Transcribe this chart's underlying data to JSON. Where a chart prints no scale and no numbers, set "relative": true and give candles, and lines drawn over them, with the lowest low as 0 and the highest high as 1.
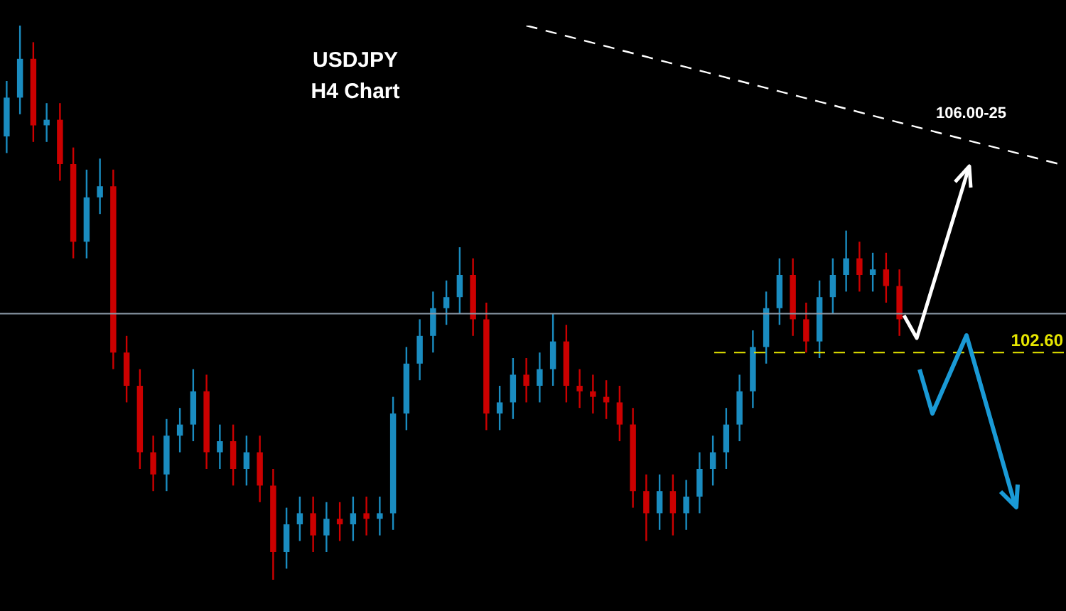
{
  "chart_data": {
    "type": "candlestick",
    "title": "USDJPY",
    "subtitle": "H4 Chart",
    "relative": true,
    "categories": [
      null,
      null,
      null,
      null,
      null,
      null,
      null,
      null,
      null,
      null,
      null,
      null,
      null,
      null,
      null,
      null,
      null,
      null,
      null,
      null,
      null,
      null,
      null,
      null,
      null,
      null,
      null,
      null,
      null,
      null,
      null,
      null,
      null,
      null,
      null,
      null,
      null,
      null,
      null,
      null,
      null,
      null,
      null,
      null,
      null,
      null,
      null,
      null,
      null,
      null,
      null,
      null,
      null,
      null,
      null,
      null,
      null,
      null,
      null,
      null,
      null,
      null,
      null,
      null,
      null,
      null,
      null,
      null,
      null,
      null,
      null,
      null,
      null,
      null,
      null,
      null,
      null,
      null,
      null,
      null
    ],
    "colors": [
      "#1a8cc0",
      "#1a8cc0",
      "#cc0000",
      "#1a8cc0",
      "#cc0000",
      "#cc0000",
      "#1a8cc0",
      "#1a8cc0",
      "#cc0000",
      "#cc0000",
      "#cc0000",
      "#cc0000",
      "#1a8cc0",
      "#1a8cc0",
      "#1a8cc0",
      "#cc0000",
      "#1a8cc0",
      "#cc0000",
      "#1a8cc0",
      "#cc0000",
      "#cc0000",
      "#1a8cc0",
      "#1a8cc0",
      "#cc0000",
      "#1a8cc0",
      "#cc0000",
      "#1a8cc0",
      "#cc0000",
      "#1a8cc0",
      "#1a8cc0",
      "#1a8cc0",
      "#1a8cc0",
      "#1a8cc0",
      "#1a8cc0",
      "#1a8cc0",
      "#cc0000",
      "#cc0000",
      "#1a8cc0",
      "#1a8cc0",
      "#cc0000",
      "#1a8cc0",
      "#1a8cc0",
      "#cc0000",
      "#cc0000",
      "#cc0000",
      "#cc0000",
      "#cc0000",
      "#cc0000",
      "#cc0000",
      "#1a8cc0",
      "#cc0000",
      "#1a8cc0",
      "#1a8cc0",
      "#1a8cc0",
      "#1a8cc0",
      "#1a8cc0",
      "#1a8cc0",
      "#1a8cc0",
      "#1a8cc0",
      "#cc0000",
      "#cc0000",
      "#1a8cc0",
      "#1a8cc0",
      "#1a8cc0",
      "#cc0000",
      "#1a8cc0",
      "#cc0000",
      "#cc0000",
      null,
      null,
      null,
      null,
      null,
      null,
      null,
      null,
      null,
      null,
      null,
      null
    ],
    "ohlc": [
      [
        0.8,
        0.9,
        0.77,
        0.87
      ],
      [
        0.87,
        1,
        0.84,
        0.94
      ],
      [
        0.94,
        0.97,
        0.79,
        0.82
      ],
      [
        0.82,
        0.86,
        0.79,
        0.83
      ],
      [
        0.83,
        0.86,
        0.72,
        0.75
      ],
      [
        0.75,
        0.78,
        0.58,
        0.61
      ],
      [
        0.61,
        0.74,
        0.58,
        0.69
      ],
      [
        0.69,
        0.76,
        0.66,
        0.71
      ],
      [
        0.71,
        0.74,
        0.38,
        0.41
      ],
      [
        0.41,
        0.44,
        0.32,
        0.35
      ],
      [
        0.35,
        0.38,
        0.2,
        0.23
      ],
      [
        0.23,
        0.26,
        0.16,
        0.19
      ],
      [
        0.19,
        0.29,
        0.16,
        0.26
      ],
      [
        0.26,
        0.31,
        0.23,
        0.28
      ],
      [
        0.28,
        0.38,
        0.25,
        0.34
      ],
      [
        0.34,
        0.37,
        0.2,
        0.23
      ],
      [
        0.23,
        0.28,
        0.2,
        0.25
      ],
      [
        0.25,
        0.28,
        0.17,
        0.2
      ],
      [
        0.2,
        0.26,
        0.17,
        0.23
      ],
      [
        0.23,
        0.26,
        0.14,
        0.17
      ],
      [
        0.17,
        0.2,
        0,
        0.05
      ],
      [
        0.05,
        0.13,
        0.02,
        0.1
      ],
      [
        0.1,
        0.15,
        0.07,
        0.12
      ],
      [
        0.12,
        0.15,
        0.05,
        0.08
      ],
      [
        0.08,
        0.14,
        0.05,
        0.11
      ],
      [
        0.11,
        0.14,
        0.07,
        0.1
      ],
      [
        0.1,
        0.15,
        0.07,
        0.12
      ],
      [
        0.12,
        0.15,
        0.08,
        0.11
      ],
      [
        0.11,
        0.15,
        0.08,
        0.12
      ],
      [
        0.12,
        0.33,
        0.09,
        0.3
      ],
      [
        0.3,
        0.42,
        0.27,
        0.39
      ],
      [
        0.39,
        0.47,
        0.36,
        0.44
      ],
      [
        0.44,
        0.52,
        0.41,
        0.49
      ],
      [
        0.49,
        0.54,
        0.46,
        0.51
      ],
      [
        0.51,
        0.6,
        0.48,
        0.55
      ],
      [
        0.55,
        0.58,
        0.44,
        0.47
      ],
      [
        0.47,
        0.5,
        0.27,
        0.3
      ],
      [
        0.3,
        0.35,
        0.27,
        0.32
      ],
      [
        0.32,
        0.4,
        0.29,
        0.37
      ],
      [
        0.37,
        0.4,
        0.32,
        0.35
      ],
      [
        0.35,
        0.41,
        0.32,
        0.38
      ],
      [
        0.38,
        0.48,
        0.35,
        0.43
      ],
      [
        0.43,
        0.46,
        0.32,
        0.35
      ],
      [
        0.35,
        0.38,
        0.31,
        0.34
      ],
      [
        0.34,
        0.37,
        0.3,
        0.33
      ],
      [
        0.33,
        0.36,
        0.29,
        0.32
      ],
      [
        0.32,
        0.35,
        0.25,
        0.28
      ],
      [
        0.28,
        0.31,
        0.13,
        0.16
      ],
      [
        0.16,
        0.19,
        0.07,
        0.12
      ],
      [
        0.12,
        0.19,
        0.09,
        0.16
      ],
      [
        0.16,
        0.19,
        0.08,
        0.12
      ],
      [
        0.12,
        0.18,
        0.09,
        0.15
      ],
      [
        0.15,
        0.23,
        0.12,
        0.2
      ],
      [
        0.2,
        0.26,
        0.17,
        0.23
      ],
      [
        0.23,
        0.31,
        0.2,
        0.28
      ],
      [
        0.28,
        0.37,
        0.25,
        0.34
      ],
      [
        0.34,
        0.45,
        0.31,
        0.42
      ],
      [
        0.42,
        0.52,
        0.39,
        0.49
      ],
      [
        0.49,
        0.58,
        0.46,
        0.55
      ],
      [
        0.55,
        0.58,
        0.44,
        0.47
      ],
      [
        0.47,
        0.5,
        0.41,
        0.43
      ],
      [
        0.43,
        0.54,
        0.4,
        0.51
      ],
      [
        0.51,
        0.58,
        0.48,
        0.55
      ],
      [
        0.55,
        0.63,
        0.52,
        0.58
      ],
      [
        0.58,
        0.61,
        0.52,
        0.55
      ],
      [
        0.55,
        0.59,
        0.52,
        0.56
      ],
      [
        0.56,
        0.59,
        0.5,
        0.53
      ],
      [
        0.53,
        0.56,
        0.44,
        0.47
      ],
      null,
      null,
      null,
      null,
      null,
      null,
      null,
      null,
      null,
      null,
      null,
      null
    ],
    "series": [
      {
        "type": "line",
        "color": "#ffffff",
        "line_style": "dashed",
        "values": [
          null,
          null,
          null,
          null,
          null,
          null,
          null,
          null,
          null,
          null,
          null,
          null,
          null,
          null,
          null,
          null,
          null,
          null,
          null,
          null,
          null,
          null,
          null,
          null,
          null,
          null,
          null,
          null,
          null,
          null,
          null,
          null,
          null,
          null,
          null,
          null,
          null,
          null,
          null,
          1.0,
          null,
          null,
          null,
          null,
          null,
          null,
          null,
          null,
          null,
          null,
          null,
          null,
          null,
          null,
          null,
          null,
          null,
          null,
          null,
          null,
          null,
          null,
          null,
          null,
          null,
          null,
          null,
          null,
          null,
          null,
          null,
          null,
          null,
          null,
          null,
          null,
          null,
          null,
          null,
          0.75
        ]
      }
    ],
    "ref_lines": [
      {
        "axis": "y",
        "value": 0.48,
        "color": "#8c9aa8",
        "line_style": "solid"
      },
      {
        "axis": "y",
        "value": 0.41,
        "color": "#e6e600",
        "line_style": "dashed"
      }
    ],
    "annotations": [
      "106.00-25",
      "102.60"
    ],
    "legend": false
  }
}
